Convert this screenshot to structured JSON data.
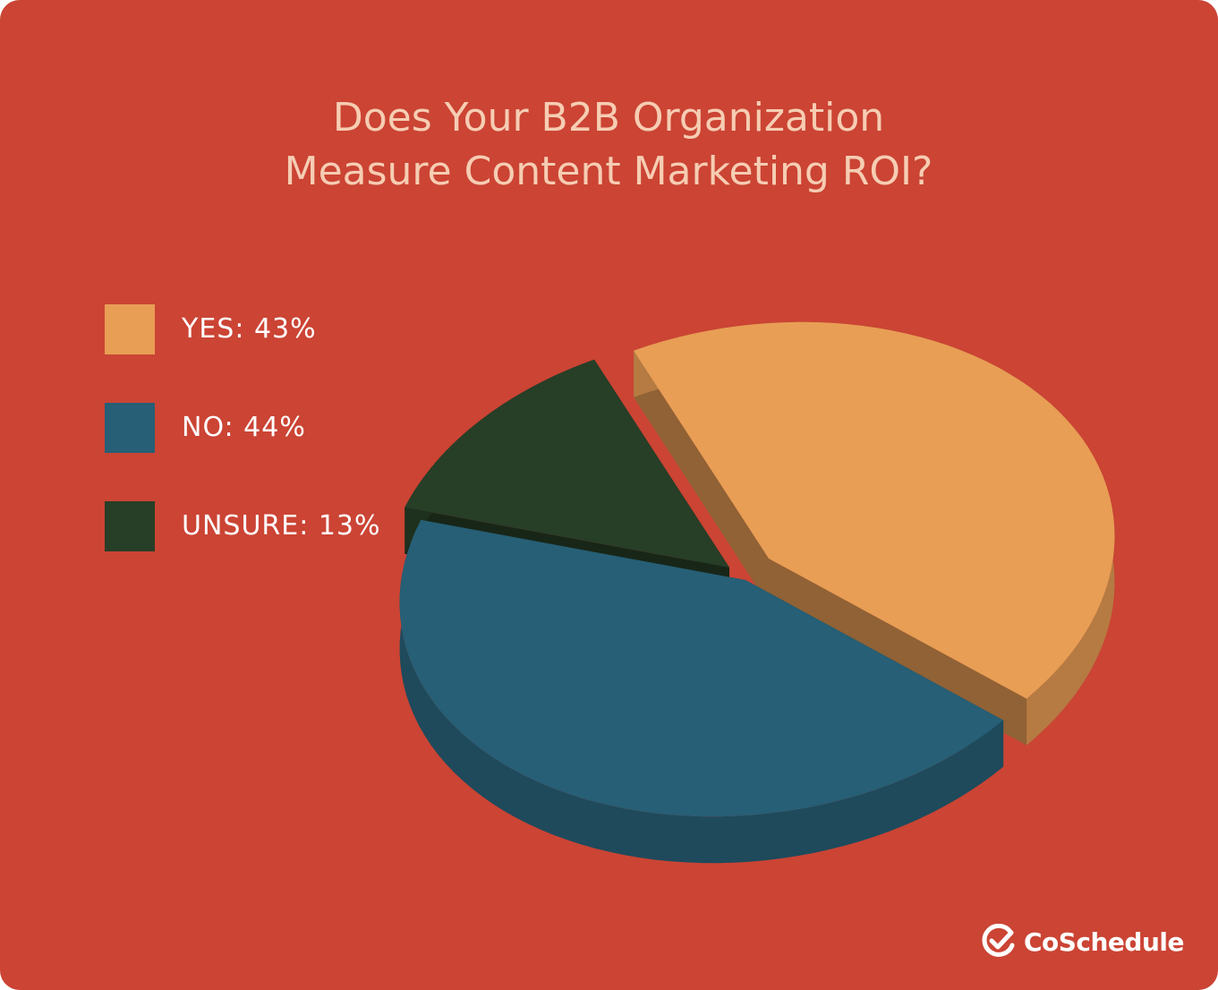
{
  "chart_data": {
    "type": "pie",
    "title_lines": [
      "Does Your B2B Organization",
      "Measure Content Marketing ROI?"
    ],
    "slices": [
      {
        "label": "YES",
        "value": 43,
        "color": "#e89e55"
      },
      {
        "label": "NO",
        "value": 44,
        "color": "#265f76"
      },
      {
        "label": "UNSURE",
        "value": 13,
        "color": "#273e27"
      }
    ],
    "legend": [
      {
        "text": "YES: 43%",
        "color": "#e89e55"
      },
      {
        "text": "NO: 44%",
        "color": "#265f76"
      },
      {
        "text": "UNSURE: 13%",
        "color": "#273e27"
      }
    ],
    "legend_position": "left",
    "style": "3d-exploded"
  },
  "brand": {
    "name": "CoSchedule",
    "icon": "check-circle-icon"
  },
  "colors": {
    "background": "#cb4434",
    "title": "#f6cdb3",
    "text": "#ffffff"
  }
}
